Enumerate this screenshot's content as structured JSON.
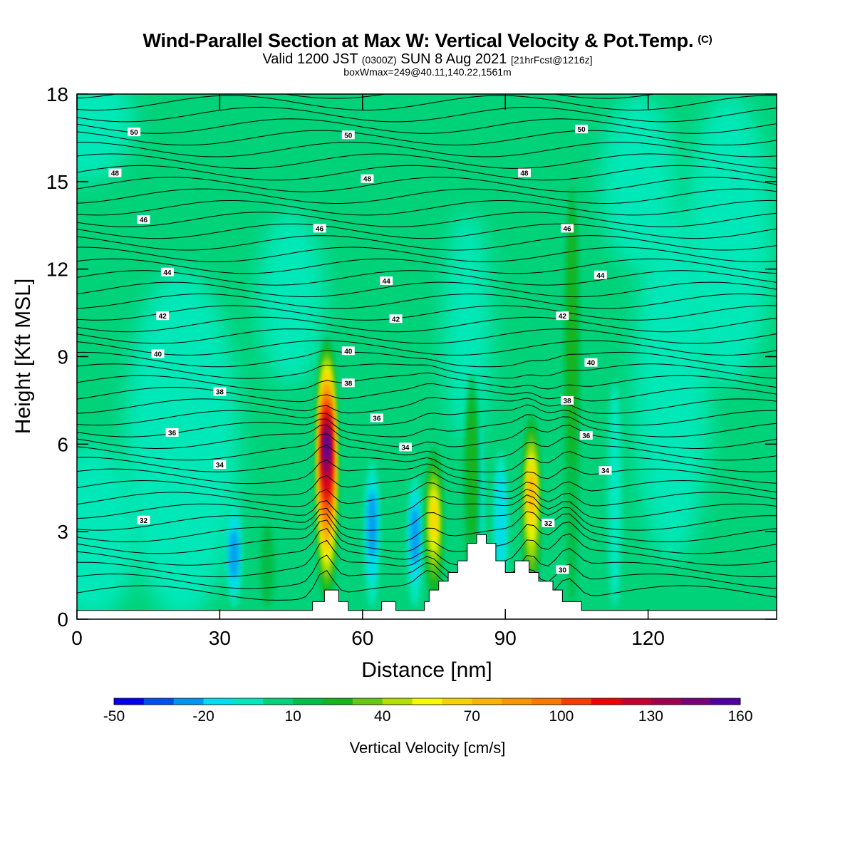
{
  "header": {
    "title": "Wind-Parallel Section at Max W: Vertical Velocity & Pot.Temp.",
    "copyright": "(C)",
    "valid_prefix": "Valid 1200 JST",
    "valid_utc": "(0300Z)",
    "valid_date": "SUN 8 Aug 2021",
    "forecast": "[21hrFcst@1216z]",
    "box_info": "boxWmax=249@40.11,140.22,1561m"
  },
  "colors": {
    "background_green": "#00d27a",
    "background_cyan": "#00e8b8",
    "terrain": "#ffffff",
    "contour": "#000000"
  },
  "chart_data": {
    "type": "heatmap",
    "xlabel": "Distance [nm]",
    "ylabel": "Height [Kft MSL]",
    "xlim": [
      0,
      147
    ],
    "ylim": [
      0,
      18
    ],
    "xticks": [
      0,
      30,
      60,
      90,
      120
    ],
    "yticks": [
      0,
      3,
      6,
      9,
      12,
      15,
      18
    ],
    "colorbar": {
      "title": "Vertical Velocity [cm/s]",
      "levels": [
        -50,
        -40,
        -30,
        -20,
        -10,
        0,
        10,
        20,
        30,
        40,
        50,
        60,
        70,
        80,
        90,
        100,
        110,
        120,
        130,
        140,
        150,
        160
      ],
      "tick_labels": [
        "-50",
        "-20",
        "10",
        "40",
        "70",
        "100",
        "130",
        "160"
      ],
      "colors": [
        "#0000f0",
        "#0050f0",
        "#0096f0",
        "#00dcf0",
        "#00e8c0",
        "#00d27a",
        "#00be46",
        "#18b41e",
        "#64c814",
        "#b4e000",
        "#f8f800",
        "#f8d200",
        "#f8b400",
        "#f89600",
        "#f87800",
        "#f83c00",
        "#f00000",
        "#c80032",
        "#a00050",
        "#780078",
        "#5000a0"
      ]
    },
    "updrafts": [
      {
        "x": 52.5,
        "peak_height": 6.0,
        "max_value": 160
      },
      {
        "x": 75,
        "peak_height": 3.5,
        "max_value": 70
      },
      {
        "x": 95.5,
        "peak_height": 4.5,
        "max_value": 80
      },
      {
        "x": 83,
        "peak_height": 6.5,
        "max_value": 30
      },
      {
        "x": 104,
        "peak_height": 13,
        "max_value": 30
      },
      {
        "x": 40,
        "peak_height": 1.5,
        "max_value": 20
      }
    ],
    "downdrafts": [
      {
        "x": 33,
        "peak_height": 2.2,
        "min_value": -30
      },
      {
        "x": 62,
        "peak_height": 3.5,
        "min_value": -30
      },
      {
        "x": 71,
        "peak_height": 3.0,
        "min_value": -30
      },
      {
        "x": 89,
        "peak_height": 4.0,
        "min_value": -20
      },
      {
        "x": 84,
        "peak_height": 5.5,
        "min_value": -15
      },
      {
        "x": 113,
        "peak_height": 6.5,
        "min_value": -10
      }
    ],
    "terrain": [
      {
        "x": 0,
        "y": 0.3
      },
      {
        "x": 49.5,
        "y": 0.3
      },
      {
        "x": 49.5,
        "y": 0.6
      },
      {
        "x": 52,
        "y": 0.6
      },
      {
        "x": 52,
        "y": 1.0
      },
      {
        "x": 55,
        "y": 1.0
      },
      {
        "x": 55,
        "y": 0.6
      },
      {
        "x": 57,
        "y": 0.6
      },
      {
        "x": 57,
        "y": 0.3
      },
      {
        "x": 64,
        "y": 0.3
      },
      {
        "x": 64,
        "y": 0.6
      },
      {
        "x": 67,
        "y": 0.6
      },
      {
        "x": 67,
        "y": 0.3
      },
      {
        "x": 73,
        "y": 0.3
      },
      {
        "x": 73,
        "y": 0.6
      },
      {
        "x": 74,
        "y": 0.6
      },
      {
        "x": 74,
        "y": 1.0
      },
      {
        "x": 76,
        "y": 1.0
      },
      {
        "x": 76,
        "y": 1.3
      },
      {
        "x": 78,
        "y": 1.3
      },
      {
        "x": 78,
        "y": 1.6
      },
      {
        "x": 80,
        "y": 1.6
      },
      {
        "x": 80,
        "y": 2.0
      },
      {
        "x": 82,
        "y": 2.0
      },
      {
        "x": 82,
        "y": 2.6
      },
      {
        "x": 84,
        "y": 2.6
      },
      {
        "x": 84,
        "y": 2.9
      },
      {
        "x": 86,
        "y": 2.9
      },
      {
        "x": 86,
        "y": 2.6
      },
      {
        "x": 88,
        "y": 2.6
      },
      {
        "x": 88,
        "y": 2.0
      },
      {
        "x": 90,
        "y": 2.0
      },
      {
        "x": 90,
        "y": 1.6
      },
      {
        "x": 92,
        "y": 1.6
      },
      {
        "x": 92,
        "y": 2.0
      },
      {
        "x": 95,
        "y": 2.0
      },
      {
        "x": 95,
        "y": 1.6
      },
      {
        "x": 97,
        "y": 1.6
      },
      {
        "x": 97,
        "y": 1.3
      },
      {
        "x": 100,
        "y": 1.3
      },
      {
        "x": 100,
        "y": 1.0
      },
      {
        "x": 102,
        "y": 1.0
      },
      {
        "x": 102,
        "y": 0.6
      },
      {
        "x": 106,
        "y": 0.6
      },
      {
        "x": 106,
        "y": 0.3
      },
      {
        "x": 147,
        "y": 0.3
      }
    ],
    "theta_contours": {
      "label_values": [
        "30",
        "32",
        "34",
        "36",
        "38",
        "40",
        "42",
        "44",
        "46",
        "48",
        "50"
      ],
      "labels": [
        {
          "text": "50",
          "x": 12,
          "y": 16.7
        },
        {
          "text": "50",
          "x": 57,
          "y": 16.6
        },
        {
          "text": "50",
          "x": 106,
          "y": 16.8
        },
        {
          "text": "48",
          "x": 8,
          "y": 15.3
        },
        {
          "text": "48",
          "x": 61,
          "y": 15.1
        },
        {
          "text": "48",
          "x": 94,
          "y": 15.3
        },
        {
          "text": "46",
          "x": 14,
          "y": 13.7
        },
        {
          "text": "46",
          "x": 51,
          "y": 13.4
        },
        {
          "text": "46",
          "x": 103,
          "y": 13.4
        },
        {
          "text": "44",
          "x": 19,
          "y": 11.9
        },
        {
          "text": "44",
          "x": 65,
          "y": 11.6
        },
        {
          "text": "44",
          "x": 110,
          "y": 11.8
        },
        {
          "text": "42",
          "x": 18,
          "y": 10.4
        },
        {
          "text": "42",
          "x": 67,
          "y": 10.3
        },
        {
          "text": "42",
          "x": 102,
          "y": 10.4
        },
        {
          "text": "40",
          "x": 17,
          "y": 9.1
        },
        {
          "text": "40",
          "x": 57,
          "y": 9.2
        },
        {
          "text": "40",
          "x": 108,
          "y": 8.8
        },
        {
          "text": "38",
          "x": 30,
          "y": 7.8
        },
        {
          "text": "38",
          "x": 57,
          "y": 8.1
        },
        {
          "text": "38",
          "x": 103,
          "y": 7.5
        },
        {
          "text": "36",
          "x": 20,
          "y": 6.4
        },
        {
          "text": "36",
          "x": 63,
          "y": 6.9
        },
        {
          "text": "36",
          "x": 107,
          "y": 6.3
        },
        {
          "text": "34",
          "x": 30,
          "y": 5.3
        },
        {
          "text": "34",
          "x": 69,
          "y": 5.9
        },
        {
          "text": "34",
          "x": 111,
          "y": 5.1
        },
        {
          "text": "32",
          "x": 14,
          "y": 3.4
        },
        {
          "text": "32",
          "x": 99,
          "y": 3.3
        },
        {
          "text": "30",
          "x": 102,
          "y": 1.7
        }
      ]
    }
  }
}
